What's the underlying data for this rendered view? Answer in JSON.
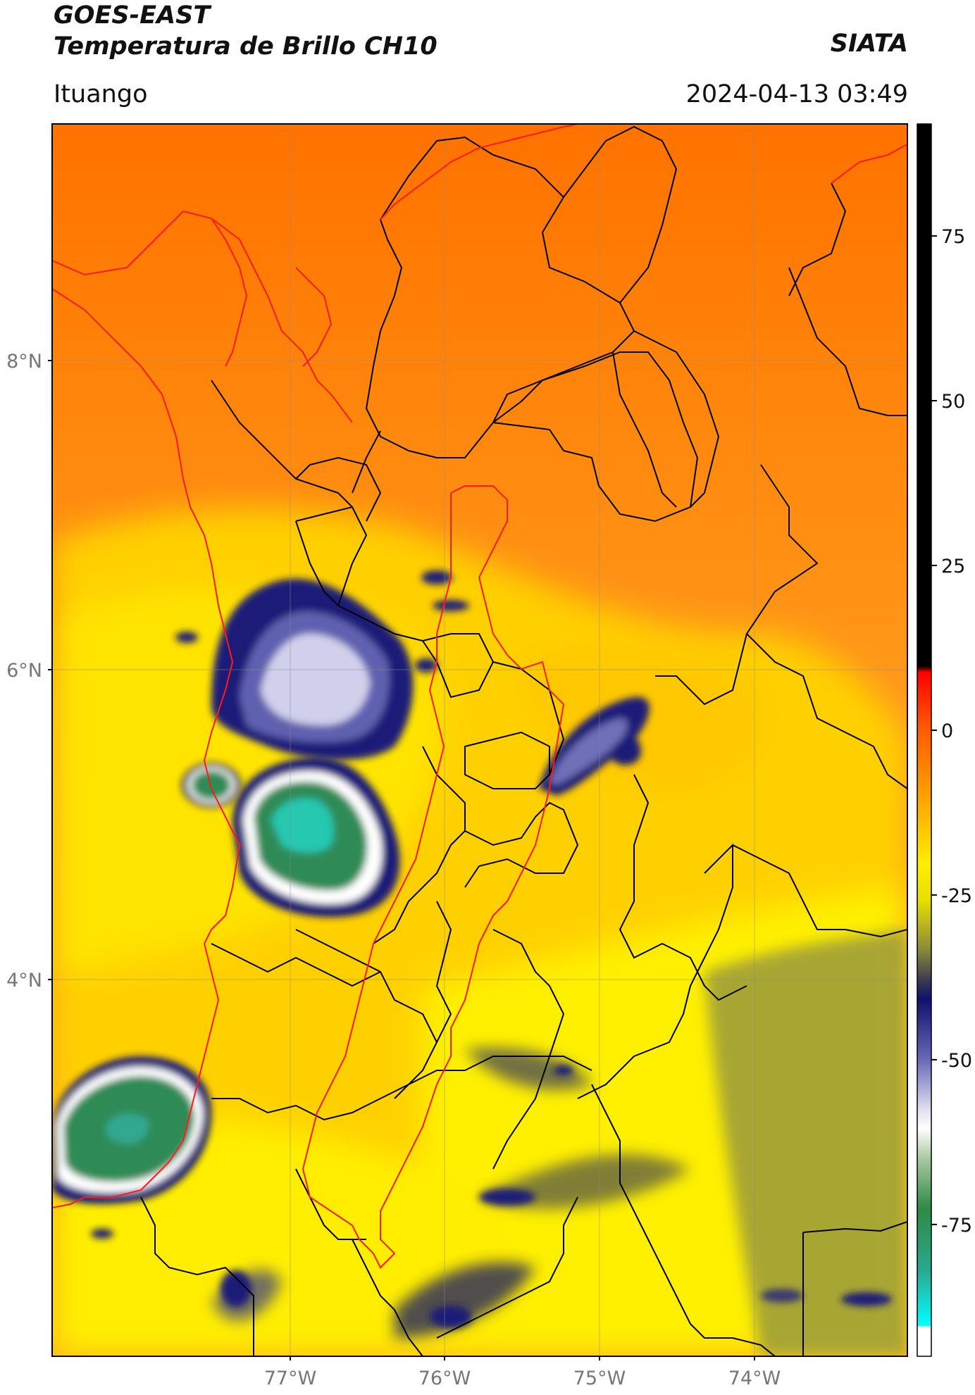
{
  "header": {
    "title_line1": "GOES-EAST",
    "title_line2": "Temperatura de Brillo CH10",
    "brand": "SIATA",
    "location": "Ituango",
    "datetime": "2024-04-13 03:49"
  },
  "map": {
    "lat_ticks": [
      "8°N",
      "6°N",
      "4°N"
    ],
    "lon_ticks": [
      "77°W",
      "76°W",
      "75°W",
      "74°W"
    ],
    "colors": {
      "base_orange": "#ff8a1c",
      "deep_orange": "#ff6a00",
      "yellow": "#ffee00",
      "olive": "#8a8a3a",
      "navy": "#1a1a7a",
      "lavender": "#b8b8e0",
      "green": "#2e8b57",
      "teal": "#20c8b0",
      "border_black": "#000000",
      "border_red": "#ff2020"
    }
  },
  "colorbar": {
    "ticks": [
      "75",
      "50",
      "25",
      "0",
      "-25",
      "-50",
      "-75"
    ],
    "values": [
      75,
      50,
      25,
      0,
      -25,
      -50,
      -75
    ],
    "range": [
      -95,
      92
    ]
  }
}
